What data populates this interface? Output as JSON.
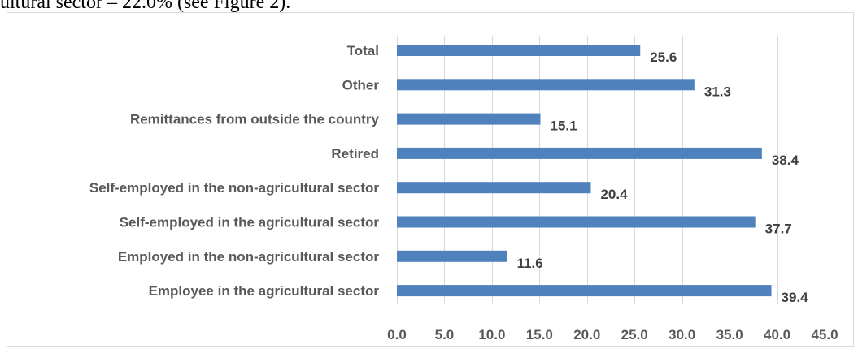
{
  "header": {
    "text": "ultural sector – 22.0% (see Figure 2)."
  },
  "chart_data": {
    "type": "bar",
    "orientation": "horizontal",
    "categories": [
      "Total",
      "Other",
      "Remittances from outside the country",
      "Retired",
      "Self-employed in the non-agricultural sector",
      "Self-employed in the agricultural sector",
      "Employed in the non-agricultural sector",
      "Employee in the agricultural sector"
    ],
    "values": [
      25.6,
      31.3,
      15.1,
      38.4,
      20.4,
      37.7,
      11.6,
      39.4
    ],
    "value_labels": [
      "25.6",
      "31.3",
      "15.1",
      "38.4",
      "20.4",
      "37.7",
      "11.6",
      "39.4"
    ],
    "xlim": [
      0,
      45
    ],
    "x_ticks": [
      "0.0",
      "5.0",
      "10.0",
      "15.0",
      "20.0",
      "25.0",
      "30.0",
      "35.0",
      "40.0",
      "45.0"
    ],
    "bar_color": "#4f81bd",
    "gridlines": true,
    "legend": "none",
    "title": "",
    "xlabel": "",
    "ylabel": ""
  }
}
